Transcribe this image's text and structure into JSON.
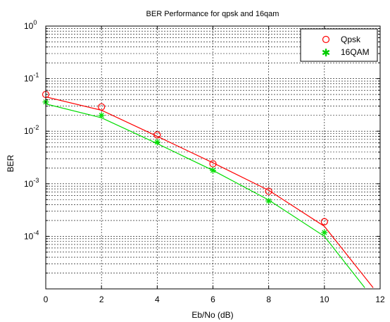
{
  "chart_data": {
    "type": "line",
    "title": "BER Performance for qpsk and 16qam",
    "xlabel": "Eb/No (dB)",
    "ylabel": "BER",
    "x_ticks": [
      "0",
      "2",
      "4",
      "6",
      "8",
      "10",
      "12"
    ],
    "y_ticks": [
      {
        "base": "10",
        "exp": "0",
        "value": 1
      },
      {
        "base": "10",
        "exp": "-1",
        "value": 0.1
      },
      {
        "base": "10",
        "exp": "-2",
        "value": 0.01
      },
      {
        "base": "10",
        "exp": "-3",
        "value": 0.001
      },
      {
        "base": "10",
        "exp": "-4",
        "value": 0.0001
      }
    ],
    "xlim": [
      0,
      12
    ],
    "ylim": [
      1e-05,
      1
    ],
    "y_scale": "log",
    "grid": true,
    "legend_position": "top-right",
    "series": [
      {
        "name": "Qpsk",
        "color": "#ff0000",
        "marker": "circle",
        "x": [
          0,
          2,
          4,
          6,
          8,
          10
        ],
        "y": [
          0.05,
          0.029,
          0.0085,
          0.0024,
          0.00072,
          0.00019
        ],
        "curve_x": [
          0,
          2,
          4,
          6,
          8,
          10,
          11.75
        ],
        "curve_y": [
          0.045,
          0.025,
          0.008,
          0.0025,
          0.00075,
          0.000155,
          1.05e-05
        ]
      },
      {
        "name": "16QAM",
        "color": "#00ff00",
        "marker": "star",
        "x": [
          0,
          2,
          4,
          6,
          8,
          10
        ],
        "y": [
          0.036,
          0.02,
          0.0062,
          0.0018,
          0.00047,
          0.000118
        ],
        "curve_x": [
          0,
          2,
          4,
          6,
          8,
          10,
          11.45
        ],
        "curve_y": [
          0.033,
          0.018,
          0.0058,
          0.0018,
          0.00049,
          0.0001,
          1.05e-05
        ]
      }
    ]
  }
}
